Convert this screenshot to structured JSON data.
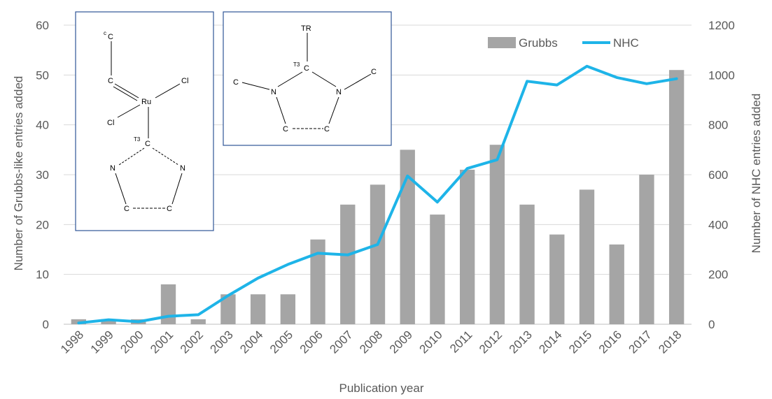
{
  "chart_data": {
    "type": "bar+line",
    "categories": [
      "1998",
      "1999",
      "2000",
      "2001",
      "2002",
      "2003",
      "2004",
      "2005",
      "2006",
      "2007",
      "2008",
      "2009",
      "2010",
      "2011",
      "2012",
      "2013",
      "2014",
      "2015",
      "2016",
      "2017",
      "2018"
    ],
    "series": [
      {
        "name": "Grubbs",
        "type": "bar",
        "axis": "left",
        "color": "#a5a5a5",
        "values": [
          1,
          1,
          1,
          8,
          1,
          6,
          6,
          6,
          17,
          24,
          28,
          35,
          22,
          31,
          36,
          24,
          18,
          27,
          16,
          30,
          51
        ]
      },
      {
        "name": "NHC",
        "type": "line",
        "axis": "right",
        "color": "#1eb4e8",
        "values": [
          5,
          18,
          10,
          32,
          38,
          115,
          185,
          240,
          285,
          278,
          320,
          595,
          490,
          625,
          660,
          975,
          960,
          1035,
          990,
          965,
          985
        ]
      }
    ],
    "xlabel": "Publication year",
    "ylabel_left": "Number of Grubbs-like entries added",
    "ylabel_right": "Number of NHC entries added",
    "ylim_left": [
      0,
      60
    ],
    "ylim_right": [
      0,
      1200
    ],
    "yticks_left": [
      "0",
      "10",
      "20",
      "30",
      "40",
      "50",
      "60"
    ],
    "yticks_right": [
      "0",
      "200",
      "400",
      "600",
      "800",
      "1000",
      "1200"
    ],
    "grid": true,
    "legend_position": "top-right",
    "insets": {
      "grubbs_structure": {
        "atoms": {
          "c_super": "c",
          "c_top": "C",
          "c_mid": "C",
          "ru": "Ru",
          "cl_right": "Cl",
          "cl_left": "Cl",
          "t3": "T3",
          "c_carbene": "C",
          "n_left": "N",
          "n_right": "N",
          "c_bottom_left": "C",
          "c_bottom_right": "C"
        }
      },
      "nhc_structure": {
        "atoms": {
          "tr": "TR",
          "t3": "T3",
          "c_carbene": "C",
          "c_left": "C",
          "n_left": "N",
          "n_right": "N",
          "c_right": "C",
          "c_bottom_left": "C",
          "c_bottom_right": "C"
        }
      }
    }
  }
}
